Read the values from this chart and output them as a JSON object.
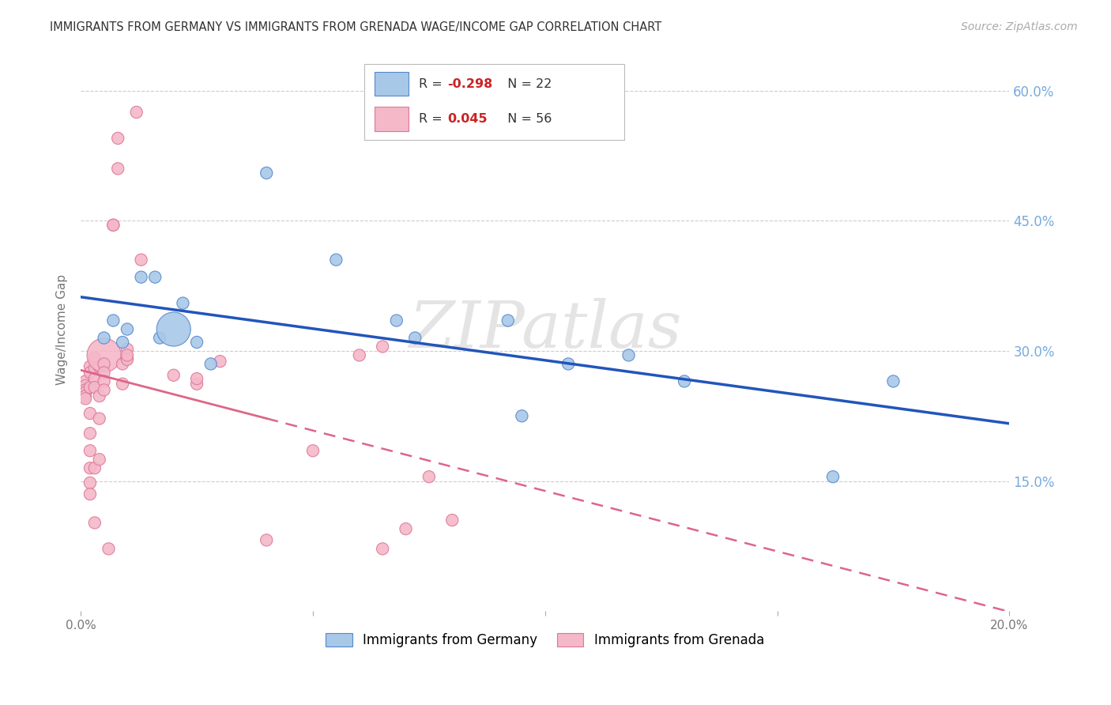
{
  "title": "IMMIGRANTS FROM GERMANY VS IMMIGRANTS FROM GRENADA WAGE/INCOME GAP CORRELATION CHART",
  "source": "Source: ZipAtlas.com",
  "ylabel": "Wage/Income Gap",
  "germany_R": -0.298,
  "germany_N": 22,
  "grenada_R": 0.045,
  "grenada_N": 56,
  "germany_color": "#a8c8e8",
  "grenada_color": "#f4b8c8",
  "germany_edge_color": "#5588cc",
  "grenada_edge_color": "#dd7799",
  "germany_line_color": "#2255bb",
  "grenada_line_color": "#dd6688",
  "watermark": "ZIPatlas",
  "xlim": [
    0.0,
    0.2
  ],
  "ylim": [
    0.0,
    0.65
  ],
  "yticks": [
    0.15,
    0.3,
    0.45,
    0.6
  ],
  "ytick_labels": [
    "15.0%",
    "30.0%",
    "45.0%",
    "60.0%"
  ],
  "xticks": [
    0.0,
    0.05,
    0.1,
    0.15,
    0.2
  ],
  "xtick_labels": [
    "0.0%",
    "",
    "",
    "",
    "20.0%"
  ],
  "germany_x": [
    0.005,
    0.007,
    0.009,
    0.01,
    0.013,
    0.016,
    0.017,
    0.02,
    0.022,
    0.025,
    0.028,
    0.04,
    0.055,
    0.068,
    0.072,
    0.092,
    0.095,
    0.105,
    0.118,
    0.13,
    0.162,
    0.175
  ],
  "germany_y": [
    0.315,
    0.335,
    0.31,
    0.325,
    0.385,
    0.385,
    0.315,
    0.325,
    0.355,
    0.31,
    0.285,
    0.505,
    0.405,
    0.335,
    0.315,
    0.335,
    0.225,
    0.285,
    0.295,
    0.265,
    0.155,
    0.265
  ],
  "germany_sizes": [
    1,
    1,
    1,
    1,
    1,
    1,
    1,
    8,
    1,
    1,
    1,
    1,
    1,
    1,
    1,
    1,
    1,
    1,
    1,
    1,
    1,
    1
  ],
  "grenada_x": [
    0.001,
    0.001,
    0.001,
    0.001,
    0.001,
    0.001,
    0.001,
    0.002,
    0.002,
    0.002,
    0.002,
    0.002,
    0.002,
    0.002,
    0.002,
    0.002,
    0.003,
    0.003,
    0.003,
    0.003,
    0.003,
    0.003,
    0.004,
    0.004,
    0.004,
    0.004,
    0.005,
    0.005,
    0.005,
    0.005,
    0.005,
    0.006,
    0.007,
    0.007,
    0.008,
    0.008,
    0.009,
    0.009,
    0.01,
    0.01,
    0.01,
    0.01,
    0.012,
    0.013,
    0.02,
    0.025,
    0.025,
    0.03,
    0.04,
    0.05,
    0.06,
    0.065,
    0.065,
    0.07,
    0.075,
    0.08
  ],
  "grenada_y": [
    0.255,
    0.265,
    0.26,
    0.255,
    0.252,
    0.248,
    0.245,
    0.282,
    0.275,
    0.258,
    0.228,
    0.205,
    0.185,
    0.165,
    0.148,
    0.135,
    0.292,
    0.28,
    0.268,
    0.258,
    0.165,
    0.102,
    0.282,
    0.248,
    0.222,
    0.175,
    0.295,
    0.285,
    0.275,
    0.265,
    0.255,
    0.072,
    0.445,
    0.445,
    0.51,
    0.545,
    0.285,
    0.262,
    0.302,
    0.292,
    0.29,
    0.295,
    0.575,
    0.405,
    0.272,
    0.262,
    0.268,
    0.288,
    0.082,
    0.185,
    0.295,
    0.305,
    0.072,
    0.095,
    0.155,
    0.105
  ],
  "grenada_sizes": [
    1,
    1,
    1,
    1,
    1,
    1,
    1,
    1,
    1,
    1,
    1,
    1,
    1,
    1,
    1,
    1,
    1,
    1,
    1,
    1,
    1,
    1,
    1,
    1,
    1,
    1,
    8,
    1,
    1,
    1,
    1,
    1,
    1,
    1,
    1,
    1,
    1,
    1,
    1,
    1,
    1,
    1,
    1,
    1,
    1,
    1,
    1,
    1,
    1,
    1,
    1,
    1,
    1,
    1,
    1,
    1
  ]
}
